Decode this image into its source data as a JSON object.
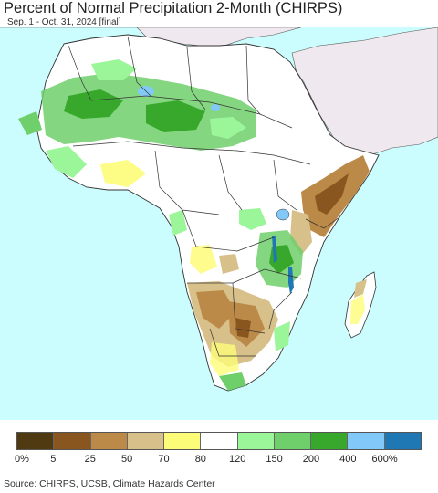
{
  "title": "Percent of Normal Precipitation 2-Month (CHIRPS)",
  "subtitle": "Sep. 1 - Oct. 31, 2024 [final]",
  "legend": {
    "colors": [
      "#4f3a12",
      "#8a5620",
      "#bc8a48",
      "#d8c08a",
      "#fdfc78",
      "#ffffff",
      "#9bf69a",
      "#6fcf6b",
      "#37a82b",
      "#82c8f8",
      "#1f78b4"
    ],
    "labels": [
      "0%",
      "5",
      "25",
      "50",
      "70",
      "80",
      "120",
      "150",
      "200",
      "400",
      "600%"
    ]
  },
  "source": "Source: CHIRPS, UCSB, Climate Hazards Center"
}
